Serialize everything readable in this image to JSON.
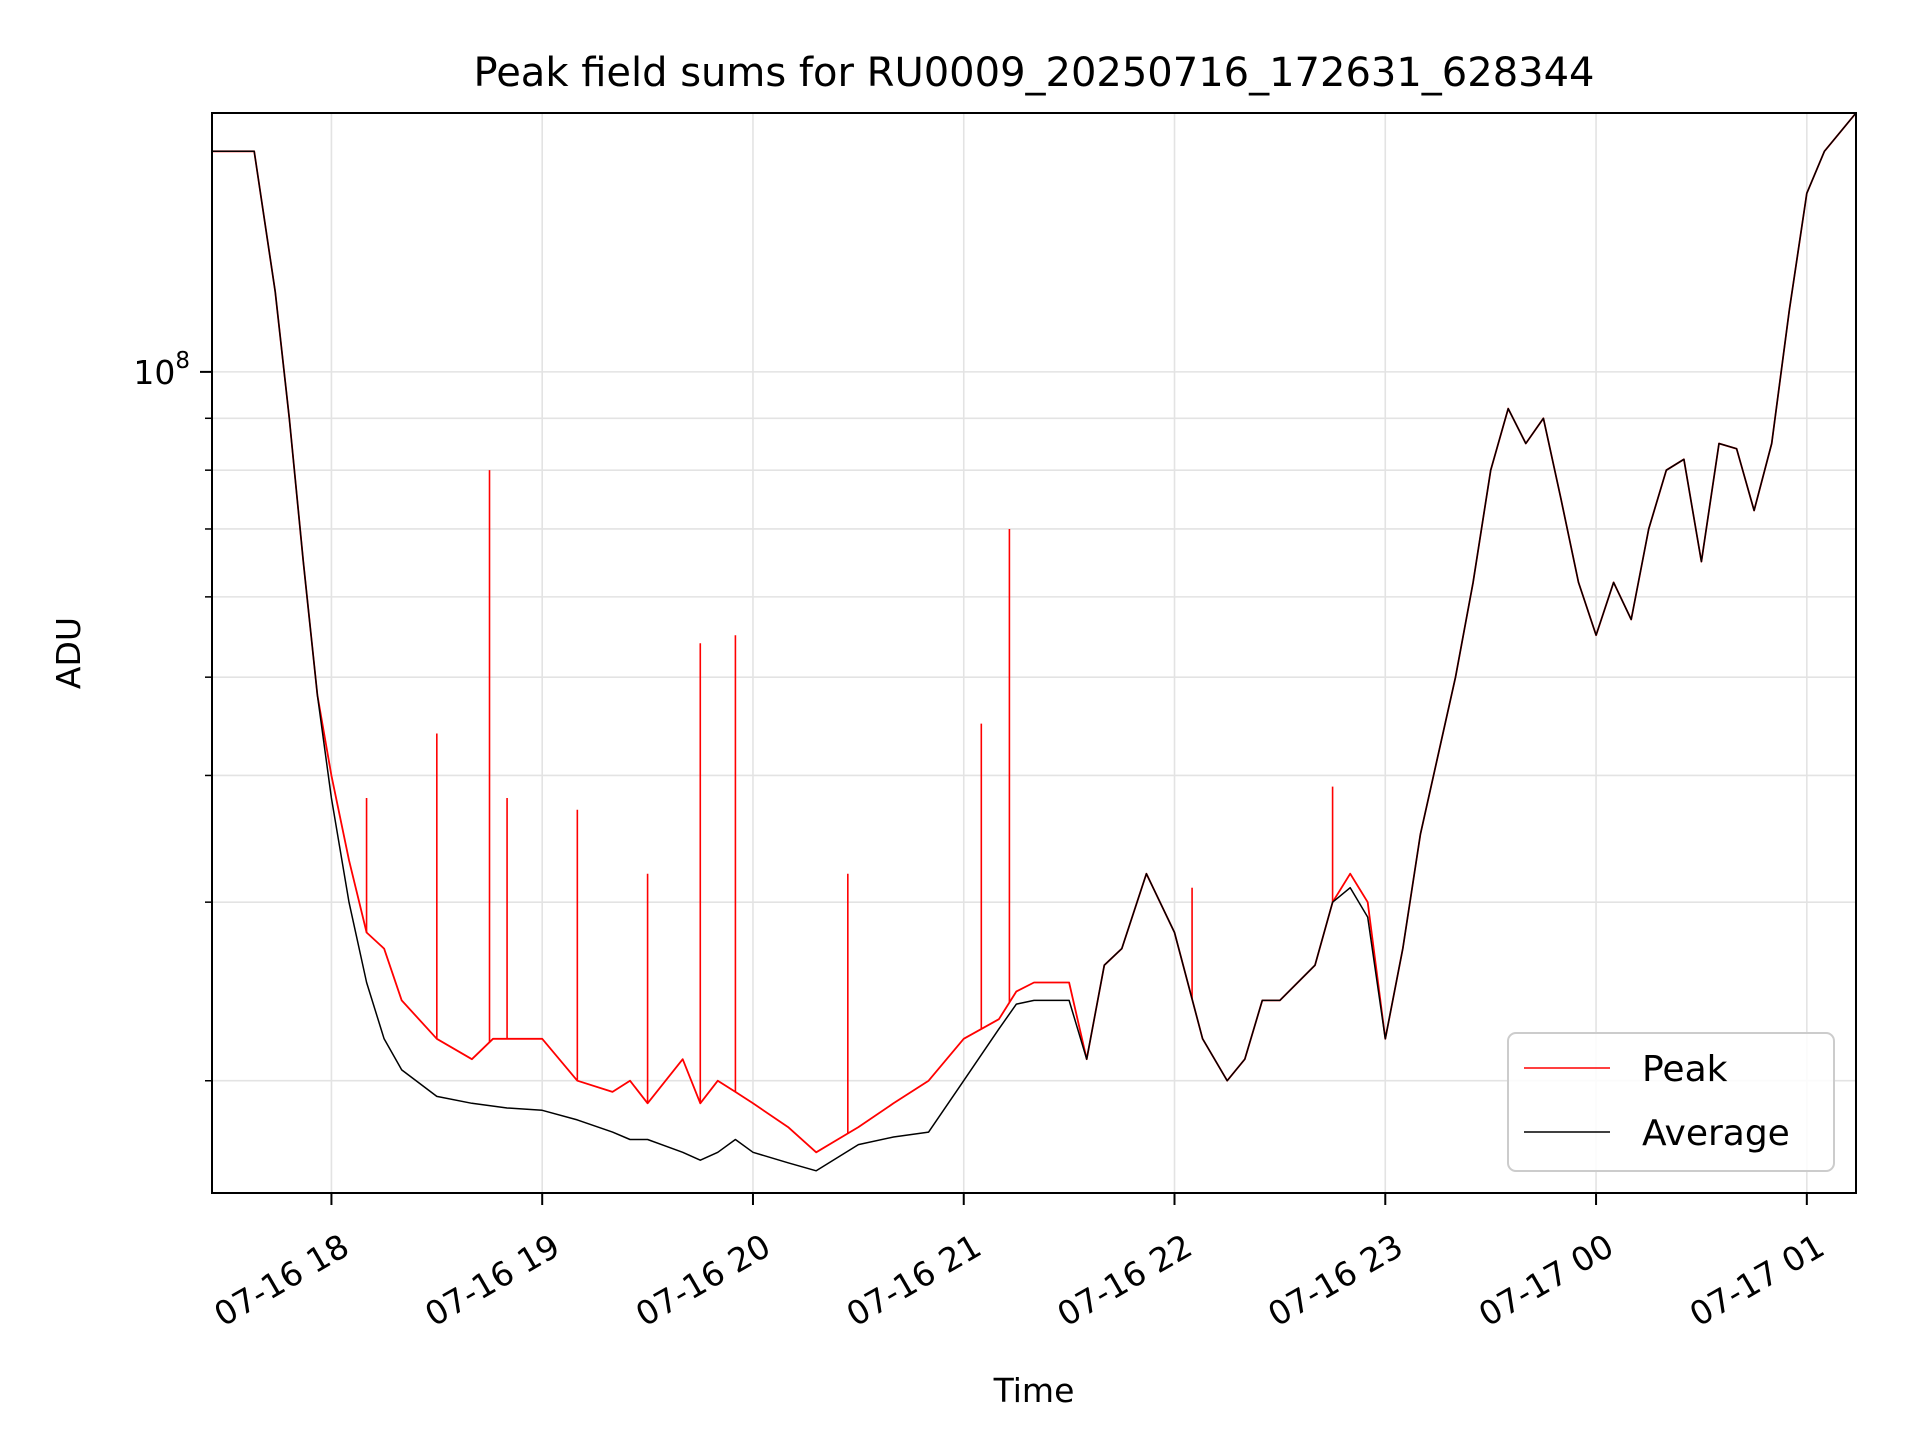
{
  "chart_data": {
    "type": "line",
    "title": "Peak field sums for RU0009_20250716_172631_628344",
    "xlabel": "Time",
    "ylabel": "ADU",
    "y_scale": "log",
    "x_type": "datetime",
    "xlim": [
      "2025-07-16 17:26",
      "2025-07-17 01:14"
    ],
    "ylim": [
      15500000,
      180000000
    ],
    "x_ticks": [
      {
        "t": "2025-07-16 18:00",
        "label": "07-16 18"
      },
      {
        "t": "2025-07-16 19:00",
        "label": "07-16 19"
      },
      {
        "t": "2025-07-16 20:00",
        "label": "07-16 20"
      },
      {
        "t": "2025-07-16 21:00",
        "label": "07-16 21"
      },
      {
        "t": "2025-07-16 22:00",
        "label": "07-16 22"
      },
      {
        "t": "2025-07-16 23:00",
        "label": "07-16 23"
      },
      {
        "t": "2025-07-17 00:00",
        "label": "07-17 00"
      },
      {
        "t": "2025-07-17 01:00",
        "label": "07-17 01"
      }
    ],
    "y_ticks": [
      {
        "value": 100000000,
        "base": "10",
        "exp": "8"
      }
    ],
    "y_minor_ticks": [
      20000000,
      30000000,
      40000000,
      50000000,
      60000000,
      70000000,
      80000000,
      90000000
    ],
    "grid": true,
    "legend_position": "bottom-right",
    "series": [
      {
        "name": "Peak",
        "color": "#ff0000",
        "x": [
          "2025-07-16 17:26",
          "2025-07-16 17:38",
          "2025-07-16 17:44",
          "2025-07-16 17:48",
          "2025-07-16 17:52",
          "2025-07-16 17:56",
          "2025-07-16 18:00",
          "2025-07-16 18:05",
          "2025-07-16 18:10",
          "2025-07-16 18:15",
          "2025-07-16 18:20",
          "2025-07-16 18:30",
          "2025-07-16 18:40",
          "2025-07-16 18:46",
          "2025-07-16 18:50",
          "2025-07-16 19:00",
          "2025-07-16 19:10",
          "2025-07-16 19:20",
          "2025-07-16 19:25",
          "2025-07-16 19:30",
          "2025-07-16 19:40",
          "2025-07-16 19:45",
          "2025-07-16 19:50",
          "2025-07-16 19:55",
          "2025-07-16 20:00",
          "2025-07-16 20:10",
          "2025-07-16 20:18",
          "2025-07-16 20:30",
          "2025-07-16 20:40",
          "2025-07-16 20:50",
          "2025-07-16 21:00",
          "2025-07-16 21:10",
          "2025-07-16 21:15",
          "2025-07-16 21:20",
          "2025-07-16 21:30",
          "2025-07-16 21:35",
          "2025-07-16 21:40",
          "2025-07-16 21:45",
          "2025-07-16 21:52",
          "2025-07-16 22:00",
          "2025-07-16 22:08",
          "2025-07-16 22:15",
          "2025-07-16 22:20",
          "2025-07-16 22:25",
          "2025-07-16 22:30",
          "2025-07-16 22:40",
          "2025-07-16 22:45",
          "2025-07-16 22:50",
          "2025-07-16 22:55",
          "2025-07-16 23:00",
          "2025-07-16 23:05",
          "2025-07-16 23:10",
          "2025-07-16 23:20",
          "2025-07-16 23:25",
          "2025-07-16 23:30",
          "2025-07-16 23:35",
          "2025-07-16 23:40",
          "2025-07-16 23:45",
          "2025-07-16 23:50",
          "2025-07-16 23:55",
          "2025-07-17 00:00",
          "2025-07-17 00:05",
          "2025-07-17 00:10",
          "2025-07-17 00:15",
          "2025-07-17 00:20",
          "2025-07-17 00:25",
          "2025-07-17 00:30",
          "2025-07-17 00:35",
          "2025-07-17 00:40",
          "2025-07-17 00:45",
          "2025-07-17 00:50",
          "2025-07-17 00:55",
          "2025-07-17 01:00",
          "2025-07-17 01:05",
          "2025-07-17 01:14"
        ],
        "y": [
          165000000,
          165000000,
          120000000,
          90000000,
          65000000,
          48000000,
          40000000,
          33000000,
          28000000,
          27000000,
          24000000,
          22000000,
          21000000,
          22000000,
          22000000,
          22000000,
          20000000,
          19500000,
          20000000,
          19000000,
          21000000,
          19000000,
          20000000,
          19500000,
          19000000,
          18000000,
          17000000,
          18000000,
          19000000,
          20000000,
          22000000,
          23000000,
          24500000,
          25000000,
          25000000,
          21000000,
          26000000,
          27000000,
          32000000,
          28000000,
          22000000,
          20000000,
          21000000,
          24000000,
          24000000,
          26000000,
          30000000,
          32000000,
          30000000,
          22000000,
          27000000,
          35000000,
          50000000,
          62000000,
          80000000,
          92000000,
          85000000,
          90000000,
          75000000,
          62000000,
          55000000,
          62000000,
          57000000,
          70000000,
          80000000,
          82000000,
          65000000,
          85000000,
          84000000,
          73000000,
          85000000,
          115000000,
          150000000,
          165000000,
          180000000
        ],
        "spikes": [
          {
            "t": "2025-07-16 18:10",
            "y": 38000000
          },
          {
            "t": "2025-07-16 18:30",
            "y": 44000000
          },
          {
            "t": "2025-07-16 18:45",
            "y": 80000000
          },
          {
            "t": "2025-07-16 18:50",
            "y": 38000000
          },
          {
            "t": "2025-07-16 19:10",
            "y": 37000000
          },
          {
            "t": "2025-07-16 19:30",
            "y": 32000000
          },
          {
            "t": "2025-07-16 19:45",
            "y": 54000000
          },
          {
            "t": "2025-07-16 19:55",
            "y": 55000000
          },
          {
            "t": "2025-07-16 20:27",
            "y": 32000000
          },
          {
            "t": "2025-07-16 21:05",
            "y": 45000000
          },
          {
            "t": "2025-07-16 21:13",
            "y": 70000000
          },
          {
            "t": "2025-07-16 22:05",
            "y": 31000000
          },
          {
            "t": "2025-07-16 22:45",
            "y": 39000000
          }
        ]
      },
      {
        "name": "Average",
        "color": "#000000",
        "x": [
          "2025-07-16 17:26",
          "2025-07-16 17:38",
          "2025-07-16 17:44",
          "2025-07-16 17:48",
          "2025-07-16 17:52",
          "2025-07-16 17:56",
          "2025-07-16 18:00",
          "2025-07-16 18:05",
          "2025-07-16 18:10",
          "2025-07-16 18:15",
          "2025-07-16 18:20",
          "2025-07-16 18:30",
          "2025-07-16 18:40",
          "2025-07-16 18:50",
          "2025-07-16 19:00",
          "2025-07-16 19:10",
          "2025-07-16 19:20",
          "2025-07-16 19:25",
          "2025-07-16 19:30",
          "2025-07-16 19:40",
          "2025-07-16 19:45",
          "2025-07-16 19:50",
          "2025-07-16 19:55",
          "2025-07-16 20:00",
          "2025-07-16 20:10",
          "2025-07-16 20:18",
          "2025-07-16 20:30",
          "2025-07-16 20:40",
          "2025-07-16 20:50",
          "2025-07-16 21:00",
          "2025-07-16 21:10",
          "2025-07-16 21:15",
          "2025-07-16 21:20",
          "2025-07-16 21:30",
          "2025-07-16 21:35",
          "2025-07-16 21:40",
          "2025-07-16 21:45",
          "2025-07-16 21:52",
          "2025-07-16 22:00",
          "2025-07-16 22:08",
          "2025-07-16 22:15",
          "2025-07-16 22:20",
          "2025-07-16 22:25",
          "2025-07-16 22:30",
          "2025-07-16 22:40",
          "2025-07-16 22:45",
          "2025-07-16 22:50",
          "2025-07-16 22:55",
          "2025-07-16 23:00",
          "2025-07-16 23:05",
          "2025-07-16 23:10",
          "2025-07-16 23:20",
          "2025-07-16 23:25",
          "2025-07-16 23:30",
          "2025-07-16 23:35",
          "2025-07-16 23:40",
          "2025-07-16 23:45",
          "2025-07-16 23:50",
          "2025-07-16 23:55",
          "2025-07-17 00:00",
          "2025-07-17 00:05",
          "2025-07-17 00:10",
          "2025-07-17 00:15",
          "2025-07-17 00:20",
          "2025-07-17 00:25",
          "2025-07-17 00:30",
          "2025-07-17 00:35",
          "2025-07-17 00:40",
          "2025-07-17 00:45",
          "2025-07-17 00:50",
          "2025-07-17 00:55",
          "2025-07-17 01:00",
          "2025-07-17 01:05",
          "2025-07-17 01:14"
        ],
        "y": [
          165000000,
          165000000,
          120000000,
          90000000,
          65000000,
          48000000,
          38000000,
          30000000,
          25000000,
          22000000,
          20500000,
          19300000,
          19000000,
          18800000,
          18700000,
          18300000,
          17800000,
          17500000,
          17500000,
          17000000,
          16700000,
          17000000,
          17500000,
          17000000,
          16600000,
          16300000,
          17300000,
          17600000,
          17800000,
          20000000,
          22500000,
          23800000,
          24000000,
          24000000,
          21000000,
          26000000,
          27000000,
          32000000,
          28000000,
          22000000,
          20000000,
          21000000,
          24000000,
          24000000,
          26000000,
          30000000,
          31000000,
          29000000,
          22000000,
          27000000,
          35000000,
          50000000,
          62000000,
          80000000,
          92000000,
          85000000,
          90000000,
          75000000,
          62000000,
          55000000,
          62000000,
          57000000,
          70000000,
          80000000,
          82000000,
          65000000,
          85000000,
          84000000,
          73000000,
          85000000,
          115000000,
          150000000,
          165000000,
          180000000
        ]
      }
    ]
  }
}
